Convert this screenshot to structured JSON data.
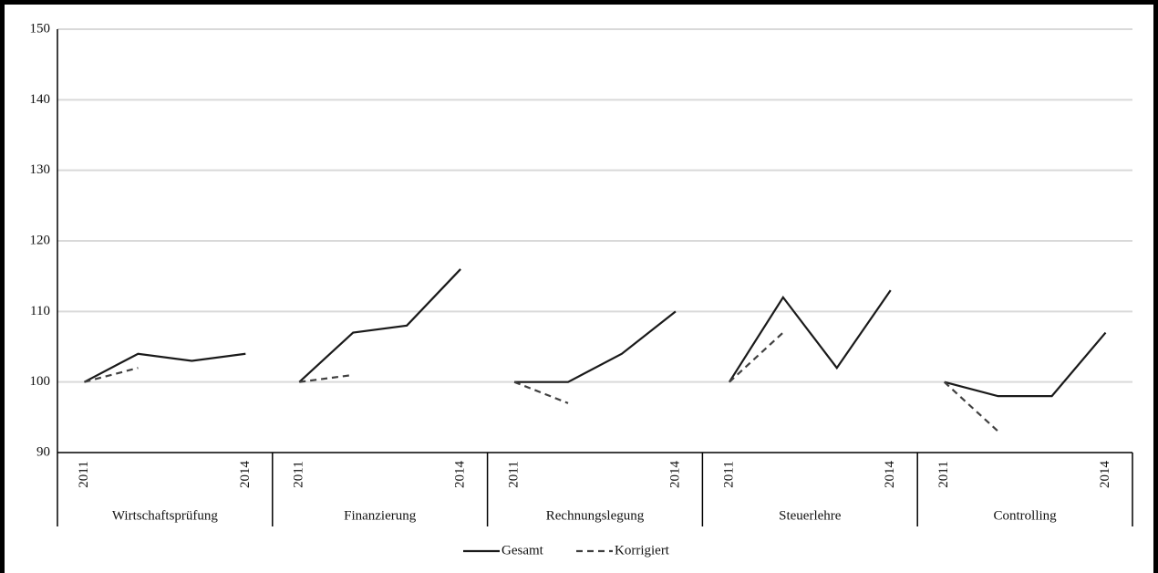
{
  "chart_data": {
    "type": "line",
    "ylim": [
      90,
      150
    ],
    "yticks": [
      90,
      100,
      110,
      120,
      130,
      140,
      150
    ],
    "grid": true,
    "legend": "bottom",
    "groups": [
      {
        "name": "Wirtschaftsprüfung",
        "categories": [
          "2011",
          null,
          null,
          "2014"
        ]
      },
      {
        "name": "Finanzierung",
        "categories": [
          "2011",
          null,
          null,
          "2014"
        ]
      },
      {
        "name": "Rechnungslegung",
        "categories": [
          "2011",
          null,
          null,
          "2014"
        ]
      },
      {
        "name": "Steuerlehre",
        "categories": [
          "2011",
          null,
          null,
          "2014"
        ]
      },
      {
        "name": "Controlling",
        "categories": [
          "2011",
          null,
          null,
          "2014"
        ]
      }
    ],
    "series": [
      {
        "name": "Gesamt",
        "color": "#1a1a1a",
        "dashed": false,
        "values": [
          100,
          104,
          103,
          104,
          100,
          107,
          108,
          116,
          100,
          100,
          104,
          110,
          100,
          112,
          102,
          113,
          100,
          98,
          98,
          107
        ]
      },
      {
        "name": "Korrigiert",
        "color": "#404040",
        "dashed": true,
        "values": [
          100,
          102,
          null,
          null,
          100,
          101,
          null,
          null,
          100,
          97,
          null,
          null,
          100,
          107,
          null,
          null,
          100,
          93,
          null,
          null
        ]
      }
    ]
  }
}
